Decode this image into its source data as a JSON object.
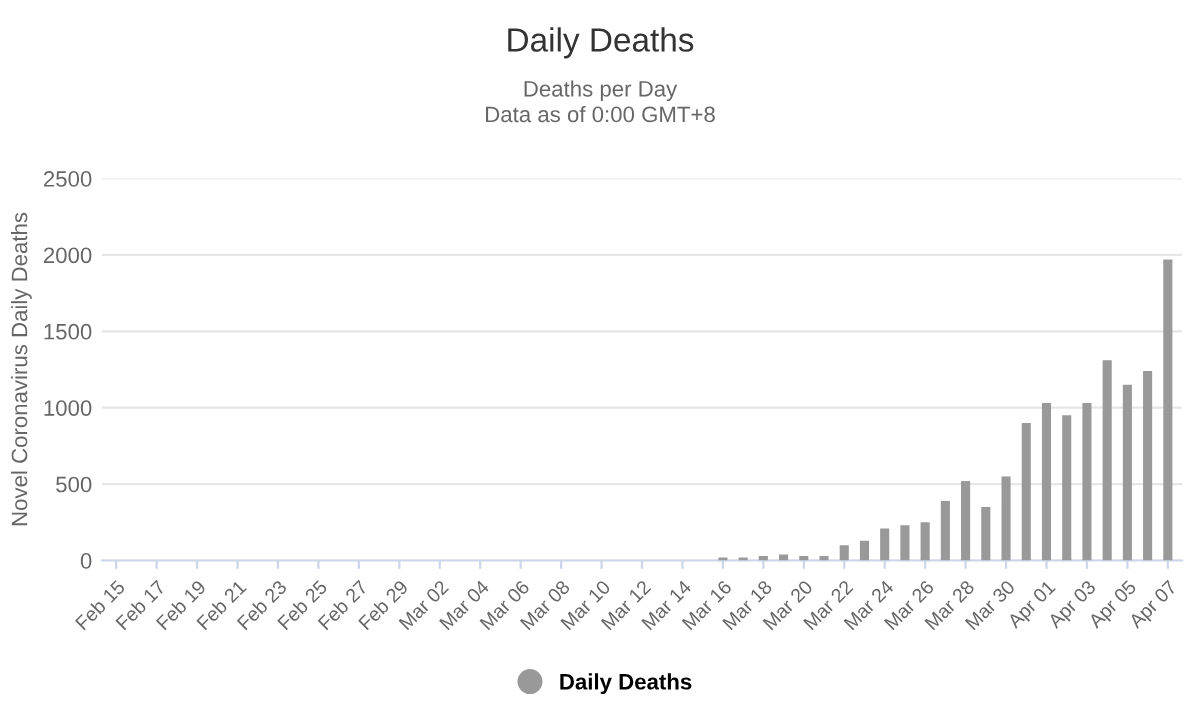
{
  "chart_data": {
    "type": "bar",
    "title": "Daily Deaths",
    "subtitle": "Deaths per Day\nData as of 0:00 GMT+8",
    "ylabel": "Novel Coronavirus Daily Deaths",
    "categories": [
      "Feb 15",
      null,
      "Feb 17",
      null,
      "Feb 19",
      null,
      "Feb 21",
      null,
      "Feb 23",
      null,
      "Feb 25",
      null,
      "Feb 27",
      null,
      "Feb 29",
      null,
      "Mar 02",
      null,
      "Mar 04",
      null,
      "Mar 06",
      null,
      "Mar 08",
      null,
      "Mar 10",
      null,
      "Mar 12",
      null,
      "Mar 14",
      null,
      "Mar 16",
      null,
      "Mar 18",
      null,
      "Mar 20",
      null,
      "Mar 22",
      null,
      "Mar 24",
      null,
      "Mar 26",
      null,
      "Mar 28",
      null,
      "Mar 30",
      null,
      "Apr 01",
      null,
      "Apr 03",
      null,
      "Apr 05",
      null,
      "Apr 07"
    ],
    "series": [
      {
        "name": "Daily Deaths",
        "color": "#999999",
        "values": [
          0,
          0,
          0,
          0,
          0,
          0,
          0,
          0,
          0,
          0,
          0,
          0,
          0,
          0,
          0,
          0,
          0,
          0,
          0,
          0,
          0,
          0,
          0,
          0,
          0,
          0,
          0,
          0,
          0,
          0,
          20,
          20,
          30,
          40,
          30,
          30,
          100,
          130,
          210,
          230,
          250,
          390,
          520,
          350,
          550,
          900,
          1030,
          950,
          1030,
          1310,
          1150,
          1240,
          1970
        ]
      }
    ],
    "ylim": [
      0,
      2500
    ],
    "yticks": [
      0,
      500,
      1000,
      1500,
      2000,
      2500
    ],
    "grid": "y",
    "legend": "bottom"
  }
}
